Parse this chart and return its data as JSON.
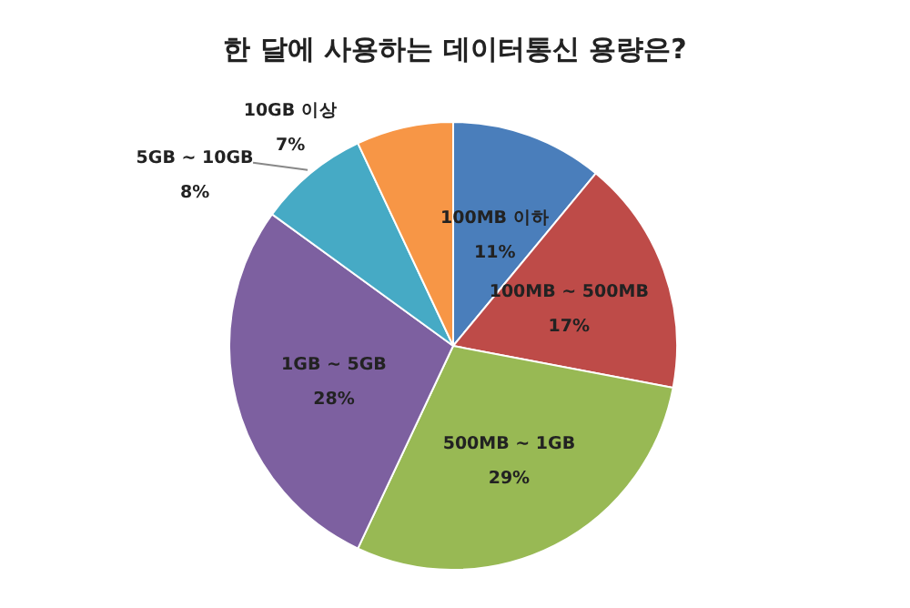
{
  "chart_data": {
    "type": "pie",
    "title": "한 달에 사용하는 데이터통신 용량은?",
    "categories": [
      "100MB 이하",
      "100MB ~ 500MB",
      "500MB ~ 1GB",
      "1GB ~ 5GB",
      "5GB ~ 10GB",
      "10GB 이상"
    ],
    "values": [
      11,
      17,
      29,
      28,
      8,
      7
    ],
    "colors": [
      "#4a7ebb",
      "#be4b48",
      "#98b954",
      "#7d60a0",
      "#46aac5",
      "#f79646"
    ],
    "value_labels": [
      "11%",
      "17%",
      "29%",
      "28%",
      "8%",
      "7%"
    ]
  }
}
